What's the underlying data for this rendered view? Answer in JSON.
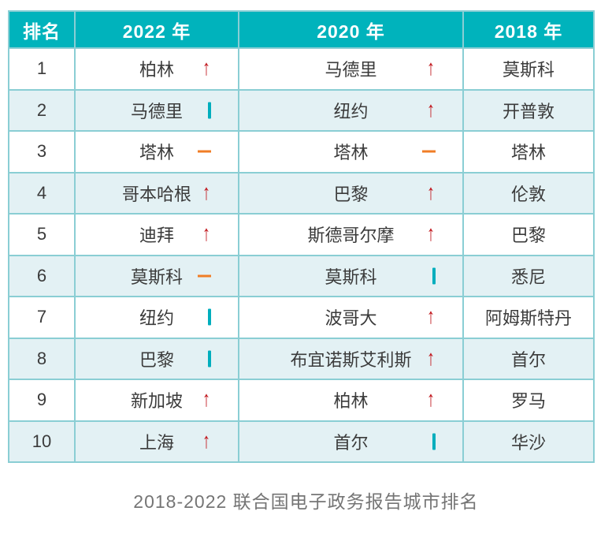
{
  "chart_data": {
    "type": "table",
    "title": "2018-2022 联合国电子政务报告城市排名",
    "columns": [
      "排名",
      "2022 年",
      "2020 年",
      "2018 年"
    ],
    "trend_note": "up = red arrow, down = teal vertical bar, same = orange dash, none = no mark",
    "rows": [
      {
        "rank": "1",
        "cells": [
          {
            "city": "柏林",
            "trend": "up"
          },
          {
            "city": "马德里",
            "trend": "up"
          },
          {
            "city": "莫斯科",
            "trend": "none"
          }
        ]
      },
      {
        "rank": "2",
        "cells": [
          {
            "city": "马德里",
            "trend": "down"
          },
          {
            "city": "纽约",
            "trend": "up"
          },
          {
            "city": "开普敦",
            "trend": "none"
          }
        ]
      },
      {
        "rank": "3",
        "cells": [
          {
            "city": "塔林",
            "trend": "same"
          },
          {
            "city": "塔林",
            "trend": "same"
          },
          {
            "city": "塔林",
            "trend": "none"
          }
        ]
      },
      {
        "rank": "4",
        "cells": [
          {
            "city": "哥本哈根",
            "trend": "up"
          },
          {
            "city": "巴黎",
            "trend": "up"
          },
          {
            "city": "伦敦",
            "trend": "none"
          }
        ]
      },
      {
        "rank": "5",
        "cells": [
          {
            "city": "迪拜",
            "trend": "up"
          },
          {
            "city": "斯德哥尔摩",
            "trend": "up"
          },
          {
            "city": "巴黎",
            "trend": "none"
          }
        ]
      },
      {
        "rank": "6",
        "cells": [
          {
            "city": "莫斯科",
            "trend": "same"
          },
          {
            "city": "莫斯科",
            "trend": "down"
          },
          {
            "city": "悉尼",
            "trend": "none"
          }
        ]
      },
      {
        "rank": "7",
        "cells": [
          {
            "city": "纽约",
            "trend": "down"
          },
          {
            "city": "波哥大",
            "trend": "up"
          },
          {
            "city": "阿姆斯特丹",
            "trend": "none"
          }
        ]
      },
      {
        "rank": "8",
        "cells": [
          {
            "city": "巴黎",
            "trend": "down"
          },
          {
            "city": "布宜诺斯艾利斯",
            "trend": "up"
          },
          {
            "city": "首尔",
            "trend": "none"
          }
        ]
      },
      {
        "rank": "9",
        "cells": [
          {
            "city": "新加坡",
            "trend": "up"
          },
          {
            "city": "柏林",
            "trend": "up"
          },
          {
            "city": "罗马",
            "trend": "none"
          }
        ]
      },
      {
        "rank": "10",
        "cells": [
          {
            "city": "上海",
            "trend": "up"
          },
          {
            "city": "首尔",
            "trend": "down"
          },
          {
            "city": "华沙",
            "trend": "none"
          }
        ]
      }
    ]
  },
  "colors": {
    "header_bg": "#00B3BC",
    "grid": "#8ACED4",
    "row_alt_bg": "#E3F1F4",
    "text": "#3B3B3B",
    "up": "#C1161C",
    "down": "#00AEBD",
    "same": "#F07D26",
    "caption": "#757575"
  }
}
